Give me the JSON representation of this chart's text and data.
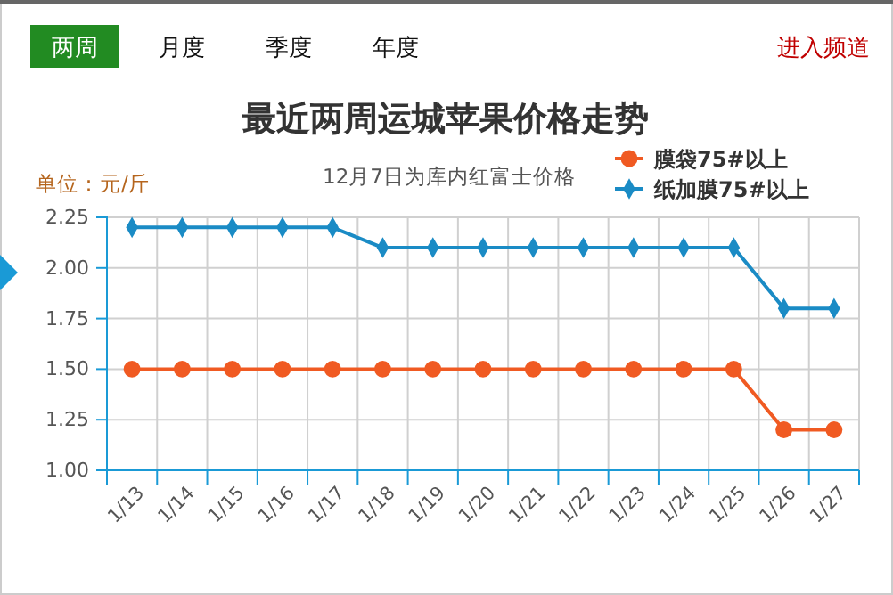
{
  "chart_data": {
    "type": "line",
    "title": "最近两周运城苹果价格走势",
    "subtitle": "12月7日为库内红富士价格",
    "ylabel": "单位：元/斤",
    "annotations": [
      "两周",
      "月度",
      "季度",
      "年度",
      "进入频道"
    ],
    "categories": [
      "1/13",
      "1/14",
      "1/15",
      "1/16",
      "1/17",
      "1/18",
      "1/19",
      "1/20",
      "1/21",
      "1/22",
      "1/23",
      "1/24",
      "1/25",
      "1/26",
      "1/27"
    ],
    "series": [
      {
        "name": "膜袋75#以上",
        "color": "#f05a22",
        "marker": "circle",
        "values": [
          1.5,
          1.5,
          1.5,
          1.5,
          1.5,
          1.5,
          1.5,
          1.5,
          1.5,
          1.5,
          1.5,
          1.5,
          1.5,
          1.2,
          1.2
        ]
      },
      {
        "name": "纸加膜75#以上",
        "color": "#1a8bc5",
        "marker": "diamond",
        "values": [
          2.2,
          2.2,
          2.2,
          2.2,
          2.2,
          2.1,
          2.1,
          2.1,
          2.1,
          2.1,
          2.1,
          2.1,
          2.1,
          1.8,
          1.8
        ]
      }
    ],
    "ylim": [
      1,
      2.25
    ],
    "yticks": [
      {
        "value": 1,
        "label": "1.00"
      },
      {
        "value": 1.25,
        "label": "1.25"
      },
      {
        "value": 1.5,
        "label": "1.50"
      },
      {
        "value": 1.75,
        "label": "1.75"
      },
      {
        "value": 2,
        "label": "2.00"
      },
      {
        "value": 2.25,
        "label": "2.25"
      }
    ],
    "grid": true,
    "legend": "top right",
    "line_style": "solid"
  }
}
